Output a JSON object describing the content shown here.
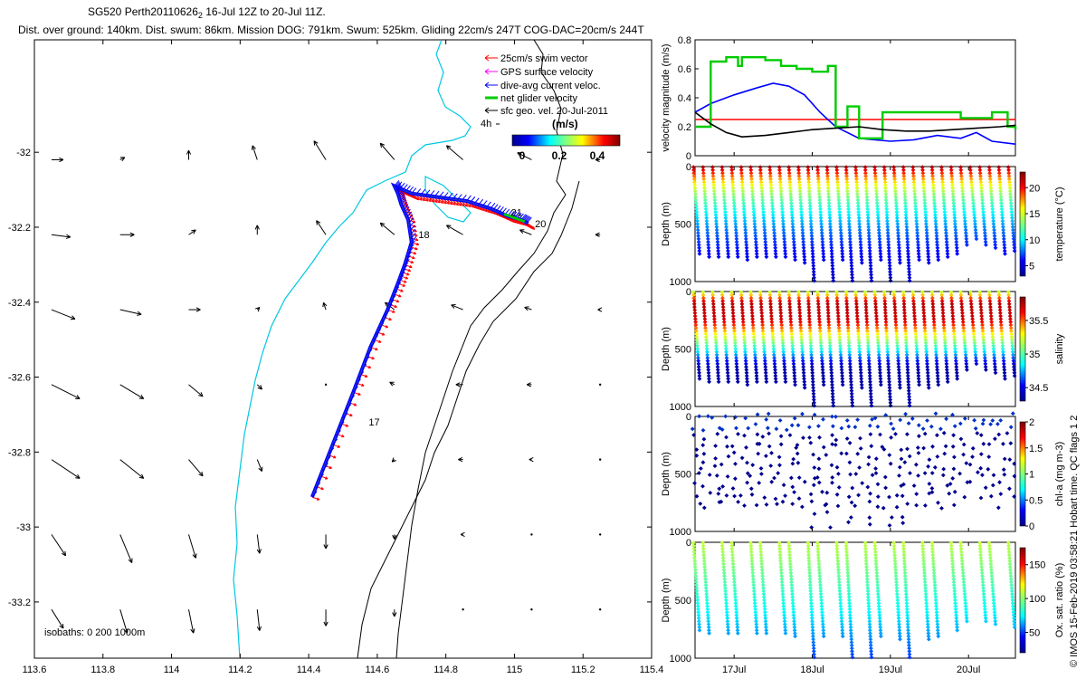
{
  "header": {
    "title": "SG520 Perth20110626",
    "title_sub": "2",
    "title_rest": " 16-Jul 12Z to 20-Jul 11Z.",
    "subtitle": "Dist. over ground: 140km. Dist. swum: 86km. Mission DOG: 791km. Swum: 525km. Gliding 22cm/s 247T COG-DAC=20cm/s 244T"
  },
  "side_note": "© IMOS 15-Feb-2019 03:58:21 Hobart time. QC flags 1  2",
  "chart_data": [
    {
      "id": "map",
      "type": "scatter",
      "title": "Glider track and currents map",
      "xlim": [
        113.6,
        115.4
      ],
      "ylim": [
        -33.35,
        -31.7
      ],
      "x_ticks": [
        "113.6",
        "113.8",
        "114",
        "114.2",
        "114.4",
        "114.6",
        "114.8",
        "115",
        "115.2",
        "115.4"
      ],
      "y_ticks": [
        "-32",
        "-32.2",
        "-32.4",
        "-32.6",
        "-32.8",
        "-33",
        "-33.2"
      ],
      "legend": [
        {
          "label": "25cm/s swim vector",
          "color": "#ff0000"
        },
        {
          "label": "GPS surface velocity",
          "color": "#ff00ff"
        },
        {
          "label": "dive-avg current veloc.",
          "color": "#0000ff"
        },
        {
          "label": "net glider velocity",
          "color": "#00cc00"
        },
        {
          "label": "sfc geo. vel. 20-Jul-2011",
          "color": "#000000"
        }
      ],
      "colorbar": {
        "label": "(m/s)",
        "ticks": [
          "0",
          "0.2",
          "0.4"
        ]
      },
      "scale_label": "4h",
      "day_labels": [
        {
          "text": "21",
          "lon": 114.99,
          "lat": -32.16
        },
        {
          "text": "20",
          "lon": 115.06,
          "lat": -32.19
        },
        {
          "text": "18",
          "lon": 114.72,
          "lat": -32.22
        },
        {
          "text": "17",
          "lon": 114.575,
          "lat": -32.72
        }
      ],
      "isobath_label": "isobaths: 0   200  1000m",
      "glider_track": {
        "lon": [
          114.41,
          114.47,
          114.53,
          114.58,
          114.63,
          114.66,
          114.68,
          114.7,
          114.69,
          114.67,
          114.66,
          114.65,
          114.7,
          114.78,
          114.86,
          114.93,
          114.98,
          115.02,
          115.04
        ],
        "lat": [
          -32.92,
          -32.78,
          -32.64,
          -32.52,
          -32.42,
          -32.35,
          -32.3,
          -32.24,
          -32.18,
          -32.14,
          -32.11,
          -32.09,
          -32.11,
          -32.12,
          -32.13,
          -32.15,
          -32.17,
          -32.18,
          -32.19
        ]
      },
      "surface_vectors": {
        "lons": [
          113.65,
          113.85,
          114.05,
          114.25,
          114.45,
          114.65,
          114.85,
          115.05,
          115.25
        ],
        "lats": [
          -32.02,
          -32.22,
          -32.42,
          -32.62,
          -32.82,
          -33.02,
          -33.22
        ],
        "u": [
          [
            0.05,
            0.02,
            0.0,
            -0.02,
            -0.05,
            -0.06,
            -0.07,
            -0.06,
            -0.02
          ],
          [
            0.08,
            0.06,
            0.03,
            0.0,
            -0.04,
            -0.06,
            -0.07,
            -0.05,
            -0.02
          ],
          [
            0.1,
            0.09,
            0.05,
            0.01,
            -0.01,
            -0.04,
            -0.05,
            -0.03,
            -0.01
          ],
          [
            0.12,
            0.1,
            0.06,
            0.02,
            0.0,
            -0.02,
            -0.03,
            -0.02,
            0.0
          ],
          [
            0.12,
            0.1,
            0.06,
            0.02,
            0.0,
            -0.01,
            -0.02,
            -0.01,
            0.0
          ],
          [
            0.06,
            0.05,
            0.03,
            0.01,
            0.0,
            0.0,
            -0.01,
            0.0,
            0.0
          ],
          [
            0.05,
            0.03,
            0.02,
            0.01,
            0.0,
            0.0,
            0.0,
            0.0,
            0.0
          ]
        ],
        "v": [
          [
            0.0,
            0.01,
            0.04,
            0.06,
            0.08,
            0.07,
            0.06,
            0.03,
            0.0
          ],
          [
            -0.01,
            0.0,
            0.02,
            0.04,
            0.06,
            0.05,
            0.04,
            0.02,
            0.0
          ],
          [
            -0.04,
            -0.02,
            0.0,
            0.01,
            0.03,
            0.03,
            0.02,
            0.01,
            0.0
          ],
          [
            -0.06,
            -0.06,
            -0.05,
            -0.02,
            0.0,
            0.01,
            0.0,
            0.0,
            0.0
          ],
          [
            -0.08,
            -0.08,
            -0.07,
            -0.05,
            -0.03,
            -0.01,
            0.0,
            0.0,
            0.0
          ],
          [
            -0.09,
            -0.12,
            -0.1,
            -0.08,
            -0.06,
            -0.02,
            0.0,
            0.0,
            0.0
          ],
          [
            -0.08,
            -0.1,
            -0.1,
            -0.09,
            -0.07,
            -0.03,
            0.0,
            0.0,
            0.0
          ]
        ]
      }
    },
    {
      "id": "velocity",
      "type": "line",
      "ylabel": "velocity magnitude (m/s)",
      "ylim": [
        0,
        0.8
      ],
      "y_ticks": [
        "0",
        "0.2",
        "0.4",
        "0.6",
        "0.8"
      ],
      "xlim": [
        16.5,
        20.6
      ],
      "series": [
        {
          "name": "swim vector",
          "color": "#ff0000",
          "x": [
            16.5,
            20.6
          ],
          "y": [
            0.25,
            0.25
          ]
        },
        {
          "name": "dive-avg current veloc.",
          "color": "#0000ff",
          "x": [
            16.5,
            16.7,
            17.0,
            17.3,
            17.5,
            17.7,
            17.9,
            18.1,
            18.3,
            18.6,
            19.0,
            19.3,
            19.6,
            19.9,
            20.1,
            20.3,
            20.6
          ],
          "y": [
            0.3,
            0.36,
            0.42,
            0.47,
            0.5,
            0.48,
            0.42,
            0.3,
            0.2,
            0.12,
            0.1,
            0.11,
            0.14,
            0.12,
            0.16,
            0.1,
            0.08
          ]
        },
        {
          "name": "net glider velocity",
          "color": "#00cc00",
          "x": [
            16.5,
            16.7,
            16.9,
            17.05,
            17.1,
            17.4,
            17.6,
            17.8,
            18.0,
            18.2,
            18.3,
            18.45,
            18.6,
            18.9,
            19.1,
            19.4,
            19.6,
            19.9,
            20.1,
            20.3,
            20.5,
            20.6
          ],
          "y": [
            0.2,
            0.65,
            0.68,
            0.62,
            0.68,
            0.66,
            0.62,
            0.6,
            0.58,
            0.62,
            0.2,
            0.34,
            0.12,
            0.3,
            0.3,
            0.3,
            0.3,
            0.26,
            0.26,
            0.3,
            0.2,
            0.18
          ]
        },
        {
          "name": "sfc geo. vel.",
          "color": "#000000",
          "x": [
            16.5,
            16.7,
            16.9,
            17.1,
            17.4,
            17.7,
            18.0,
            18.3,
            18.6,
            18.9,
            19.2,
            19.5,
            19.8,
            20.1,
            20.4,
            20.6
          ],
          "y": [
            0.3,
            0.22,
            0.16,
            0.13,
            0.14,
            0.16,
            0.18,
            0.19,
            0.2,
            0.18,
            0.17,
            0.17,
            0.18,
            0.19,
            0.2,
            0.21
          ]
        }
      ]
    },
    {
      "id": "temperature",
      "type": "scatter",
      "ylabel": "Depth (m)",
      "ylim": [
        1000,
        0
      ],
      "y_ticks": [
        "0",
        "500",
        "1000"
      ],
      "colorbar": {
        "label": "temperature (°C)",
        "range": [
          3,
          23
        ],
        "ticks": [
          "5",
          "10",
          "15",
          "20"
        ]
      }
    },
    {
      "id": "salinity",
      "type": "scatter",
      "ylabel": "Depth (m)",
      "ylim": [
        1000,
        0
      ],
      "y_ticks": [
        "0",
        "500",
        "1000"
      ],
      "colorbar": {
        "label": "salinity",
        "range": [
          34.3,
          35.85
        ],
        "ticks": [
          "34.5",
          "35",
          "35.5"
        ]
      }
    },
    {
      "id": "chla",
      "type": "scatter",
      "ylabel": "Depth (m)",
      "ylim": [
        1000,
        0
      ],
      "y_ticks": [
        "0",
        "500",
        "1000"
      ],
      "colorbar": {
        "label": "chl-a (mg m-3)",
        "range": [
          0,
          2
        ],
        "ticks": [
          "0",
          "0.5",
          "1",
          "1.5",
          "2"
        ]
      }
    },
    {
      "id": "oxygen",
      "type": "scatter",
      "ylabel": "Depth (m)",
      "ylim": [
        1000,
        0
      ],
      "y_ticks": [
        "0",
        "500",
        "1000"
      ],
      "colorbar": {
        "label": "Ox. sat. ratio (%)",
        "range": [
          20,
          175
        ],
        "ticks": [
          "50",
          "100",
          "150"
        ]
      }
    }
  ],
  "time_axis": {
    "xlim": [
      16.5,
      20.6
    ],
    "ticks": [
      {
        "value": 17,
        "label": "17Jul"
      },
      {
        "value": 18,
        "label": "18Jul"
      },
      {
        "value": 19,
        "label": "19Jul"
      },
      {
        "value": 20,
        "label": "20Jul"
      }
    ]
  },
  "profiles": {
    "start": 16.52,
    "end": 20.55,
    "count": 34,
    "max_depth": [
      780,
      800,
      810,
      790,
      800,
      820,
      790,
      800,
      810,
      800,
      820,
      840,
      1000,
      820,
      1000,
      830,
      1000,
      850,
      1000,
      830,
      1000,
      850,
      1000,
      830,
      840,
      820,
      800,
      780,
      690,
      640,
      700,
      720,
      780,
      740
    ]
  }
}
